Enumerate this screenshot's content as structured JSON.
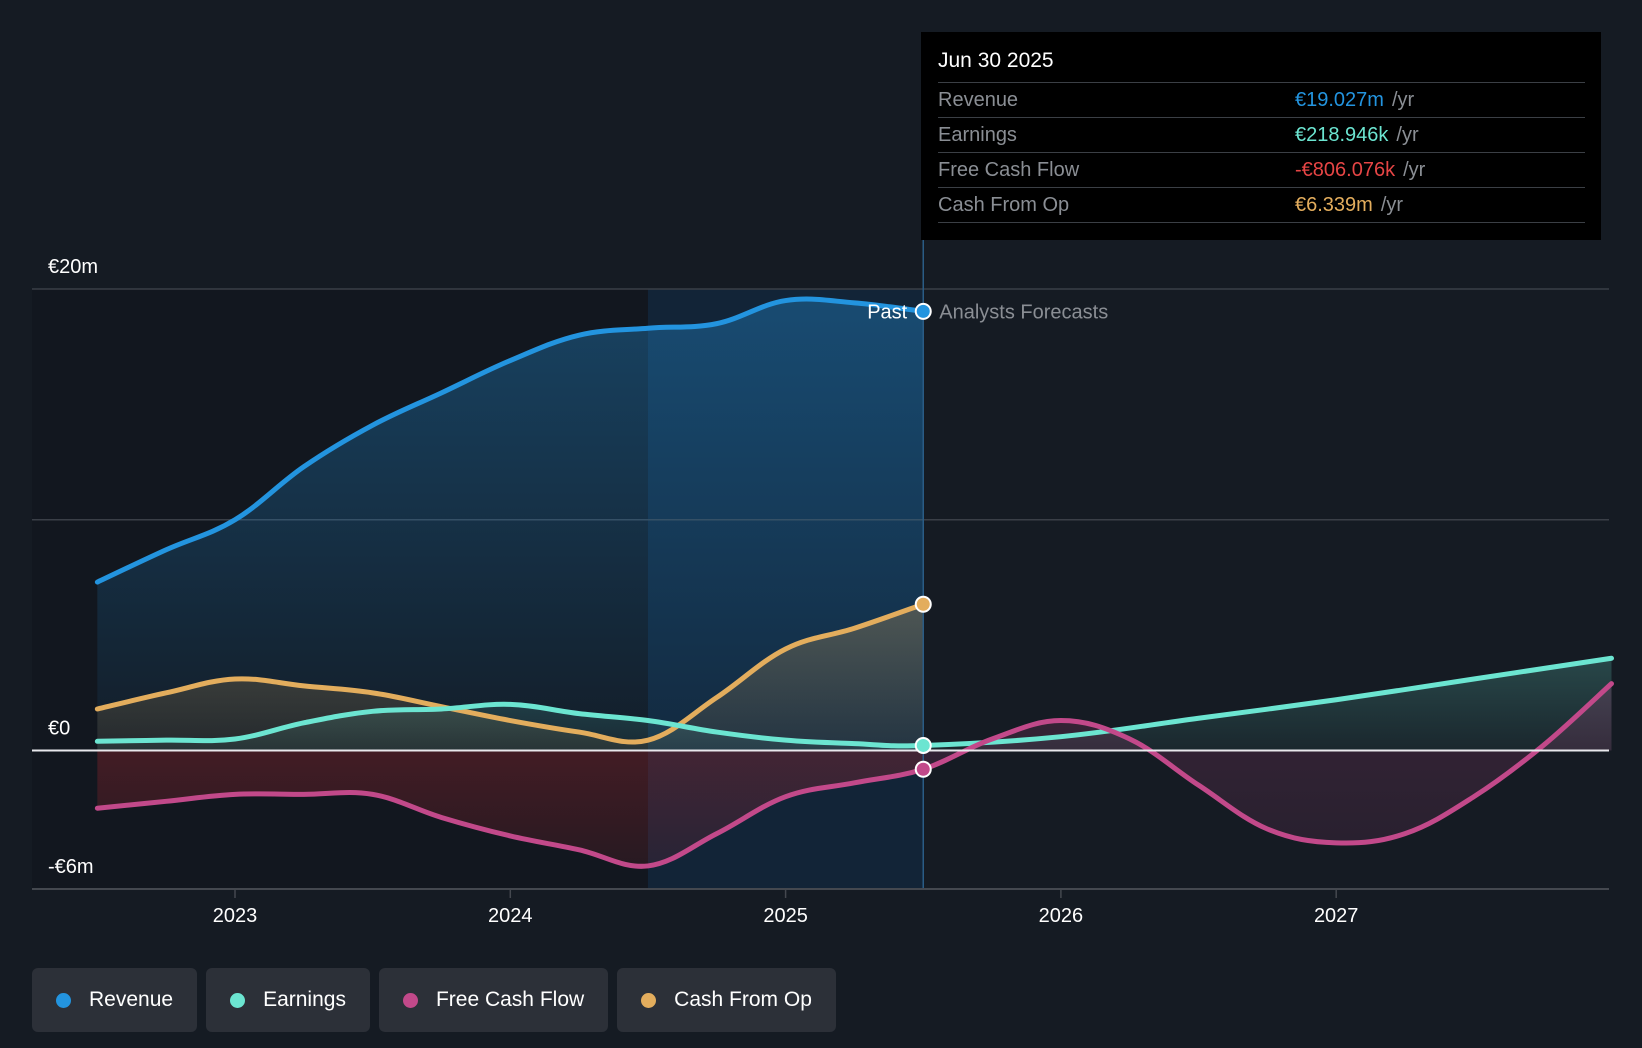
{
  "colors": {
    "background": "#151b23",
    "revenue": "#2394df",
    "earnings": "#6ce5d1",
    "free_cash_flow": "#c2498a",
    "cash_from_op": "#e3ad5d",
    "negative_value": "#e64545"
  },
  "tooltip": {
    "date": "Jun 30 2025",
    "unit": "/yr",
    "rows": [
      {
        "label": "Revenue",
        "value": "€19.027m",
        "color": "#2394df"
      },
      {
        "label": "Earnings",
        "value": "€218.946k",
        "color": "#6ce5d1"
      },
      {
        "label": "Free Cash Flow",
        "value": "-€806.076k",
        "color": "#e64545"
      },
      {
        "label": "Cash From Op",
        "value": "€6.339m",
        "color": "#e3ad5d"
      }
    ]
  },
  "annotations": {
    "past": "Past",
    "forecast": "Analysts Forecasts"
  },
  "legend": [
    {
      "label": "Revenue",
      "color": "#2394df"
    },
    {
      "label": "Earnings",
      "color": "#6ce5d1"
    },
    {
      "label": "Free Cash Flow",
      "color": "#c2498a"
    },
    {
      "label": "Cash From Op",
      "color": "#e3ad5d"
    }
  ],
  "chart_data": {
    "type": "area",
    "title": "",
    "xlabel": "",
    "ylabel": "",
    "unit": "€m",
    "ylim": [
      -6,
      20
    ],
    "xlim": [
      2022.3,
      2028.0
    ],
    "y_ticks": [
      {
        "value": 20,
        "label": "€20m"
      },
      {
        "value": 0,
        "label": "€0"
      },
      {
        "value": -6,
        "label": "-€6m"
      }
    ],
    "y_gridlines": [
      20,
      10
    ],
    "x_ticks": [
      {
        "value": 2023,
        "label": "2023"
      },
      {
        "value": 2024,
        "label": "2024"
      },
      {
        "value": 2025,
        "label": "2025"
      },
      {
        "value": 2026,
        "label": "2026"
      },
      {
        "value": 2027,
        "label": "2027"
      }
    ],
    "past_end": 2025.5,
    "highlight_start": 2024.5,
    "legend_position": "bottom-left",
    "series": [
      {
        "name": "Revenue",
        "key": "revenue",
        "color": "#2394df",
        "x": [
          2022.5,
          2022.75,
          2023.0,
          2023.25,
          2023.5,
          2023.75,
          2024.0,
          2024.25,
          2024.5,
          2024.75,
          2025.0,
          2025.25,
          2025.5
        ],
        "values": [
          7.3,
          8.7,
          10.0,
          12.3,
          14.1,
          15.5,
          16.9,
          18.0,
          18.3,
          18.5,
          19.5,
          19.4,
          19.03
        ]
      },
      {
        "name": "Earnings",
        "key": "earnings",
        "color": "#6ce5d1",
        "x": [
          2022.5,
          2022.75,
          2023.0,
          2023.25,
          2023.5,
          2023.75,
          2024.0,
          2024.25,
          2024.5,
          2024.75,
          2025.0,
          2025.25,
          2025.5,
          2026.0,
          2026.5,
          2027.0,
          2027.5,
          2028.0
        ],
        "values": [
          0.4,
          0.45,
          0.5,
          1.2,
          1.7,
          1.8,
          2.0,
          1.6,
          1.3,
          0.8,
          0.45,
          0.3,
          0.22,
          0.6,
          1.4,
          2.2,
          3.1,
          4.0
        ]
      },
      {
        "name": "Free Cash Flow",
        "key": "free_cash_flow",
        "color": "#c2498a",
        "x": [
          2022.5,
          2022.75,
          2023.0,
          2023.25,
          2023.5,
          2023.75,
          2024.0,
          2024.25,
          2024.5,
          2024.75,
          2025.0,
          2025.25,
          2025.5,
          2025.75,
          2026.0,
          2026.25,
          2026.5,
          2026.75,
          2027.0,
          2027.25,
          2027.5,
          2027.75,
          2028.0
        ],
        "values": [
          -2.5,
          -2.2,
          -1.9,
          -1.9,
          -1.9,
          -2.9,
          -3.7,
          -4.3,
          -5.0,
          -3.6,
          -2.0,
          -1.4,
          -0.81,
          0.5,
          1.3,
          0.5,
          -1.5,
          -3.4,
          -4.0,
          -3.6,
          -2.0,
          0.2,
          2.9
        ]
      },
      {
        "name": "Cash From Op",
        "key": "cash_from_op",
        "color": "#e3ad5d",
        "x": [
          2022.5,
          2022.75,
          2023.0,
          2023.25,
          2023.5,
          2023.75,
          2024.0,
          2024.25,
          2024.5,
          2024.75,
          2025.0,
          2025.25,
          2025.5
        ],
        "values": [
          1.8,
          2.5,
          3.1,
          2.8,
          2.5,
          1.9,
          1.3,
          0.8,
          0.45,
          2.3,
          4.4,
          5.3,
          6.34
        ]
      }
    ]
  }
}
